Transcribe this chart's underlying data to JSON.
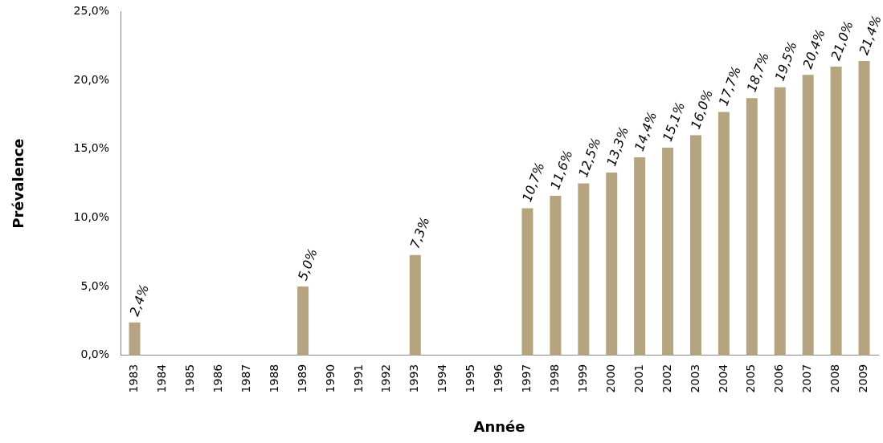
{
  "chart_data": {
    "type": "bar",
    "xlabel": "Année",
    "ylabel": "Prévalence",
    "categories": [
      "1983",
      "1984",
      "1985",
      "1986",
      "1987",
      "1988",
      "1989",
      "1990",
      "1991",
      "1992",
      "1993",
      "1994",
      "1995",
      "1996",
      "1997",
      "1998",
      "1999",
      "2000",
      "2001",
      "2002",
      "2003",
      "2004",
      "2005",
      "2006",
      "2007",
      "2008",
      "2009"
    ],
    "values": [
      2.4,
      null,
      null,
      null,
      null,
      null,
      5.0,
      null,
      null,
      null,
      7.3,
      null,
      null,
      null,
      10.7,
      11.6,
      12.5,
      13.3,
      14.4,
      15.1,
      16.0,
      17.7,
      18.7,
      19.5,
      20.4,
      21.0,
      21.4
    ],
    "value_labels": [
      "2,4%",
      null,
      null,
      null,
      null,
      null,
      "5,0%",
      null,
      null,
      null,
      "7,3%",
      null,
      null,
      null,
      "10,7%",
      "11,6%",
      "12,5%",
      "13,3%",
      "14,4%",
      "15,1%",
      "16,0%",
      "17,7%",
      "18,7%",
      "19,5%",
      "20,4%",
      "21,0%",
      "21,4%"
    ],
    "color": "#b4a480",
    "ylim": [
      0,
      25
    ],
    "yticks": [
      {
        "value": 0,
        "label": "0,0%"
      },
      {
        "value": 5,
        "label": "5,0%"
      },
      {
        "value": 10,
        "label": "10,0%"
      },
      {
        "value": 15,
        "label": "15,0%"
      },
      {
        "value": 20,
        "label": "20,0%"
      },
      {
        "value": 25,
        "label": "25,0%"
      }
    ],
    "grid": false,
    "legend": false
  }
}
